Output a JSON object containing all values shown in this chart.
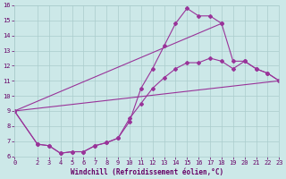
{
  "xlabel": "Windchill (Refroidissement éolien,°C)",
  "xlim": [
    0,
    23
  ],
  "ylim": [
    6,
    16
  ],
  "xticks": [
    0,
    2,
    3,
    4,
    5,
    6,
    7,
    8,
    9,
    10,
    11,
    12,
    13,
    14,
    15,
    16,
    17,
    18,
    19,
    20,
    21,
    22,
    23
  ],
  "yticks": [
    6,
    7,
    8,
    9,
    10,
    11,
    12,
    13,
    14,
    15,
    16
  ],
  "bg_color": "#cce8e8",
  "line_color": "#993399",
  "grid_color": "#aacccc",
  "font_color": "#660066",
  "curve1_x": [
    0,
    2,
    3,
    4,
    5,
    6,
    7,
    8,
    9,
    10,
    11,
    12,
    13,
    14,
    15,
    16,
    17,
    18
  ],
  "curve1_y": [
    9.0,
    6.8,
    6.7,
    6.2,
    6.3,
    6.3,
    6.7,
    6.9,
    7.2,
    8.3,
    10.5,
    11.8,
    13.3,
    14.8,
    15.8,
    15.3,
    15.3,
    14.8
  ],
  "curve2_x": [
    0,
    2,
    3,
    4,
    5,
    6,
    7,
    8,
    9,
    10,
    11,
    12,
    13,
    14,
    15,
    16,
    17,
    18,
    19,
    20,
    21,
    22,
    23
  ],
  "curve2_y": [
    9.0,
    6.8,
    6.7,
    6.2,
    6.3,
    6.3,
    6.7,
    6.9,
    7.2,
    8.5,
    9.5,
    10.5,
    11.2,
    11.8,
    12.2,
    12.2,
    12.5,
    12.3,
    11.8,
    12.3,
    11.8,
    11.5,
    11.0
  ],
  "curve3_x": [
    0,
    18,
    19,
    20,
    21,
    22,
    23
  ],
  "curve3_y": [
    9.0,
    14.8,
    12.3,
    12.3,
    11.8,
    11.5,
    11.0
  ],
  "curve4_x": [
    0,
    23
  ],
  "curve4_y": [
    9.0,
    11.0
  ]
}
